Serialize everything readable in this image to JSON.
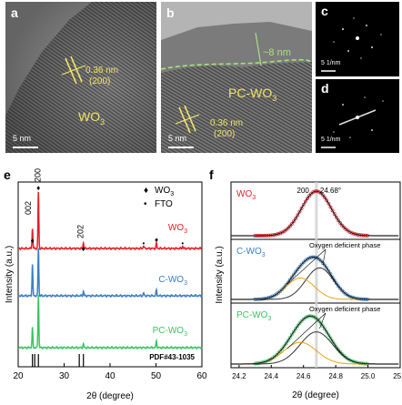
{
  "panel_a": {
    "label": "a",
    "spacing": "0.36 nm",
    "plane": "(200)",
    "material": "WO",
    "material_sub": "3",
    "scale": "5 nm"
  },
  "panel_b": {
    "label": "b",
    "layer_thickness": "~8 nm",
    "material": "PC-WO",
    "material_sub": "3",
    "spacing": "0.36 nm",
    "plane": "(200)",
    "scale": "5 nm"
  },
  "panel_c": {
    "label": "c",
    "scale": "5 1/nm"
  },
  "panel_d": {
    "label": "d",
    "scale": "5 1/nm"
  },
  "panel_e": {
    "label": "e",
    "legend": [
      {
        "symbol": "♦",
        "text": "WO",
        "sub": "3"
      },
      {
        "symbol": "•",
        "text": "FTO"
      }
    ],
    "peak_labels": [
      "002",
      "200",
      "202"
    ],
    "series_labels": [
      {
        "text": "WO",
        "sub": "3",
        "color": "#e3202a"
      },
      {
        "text": "C-WO",
        "sub": "3",
        "color": "#3b7fc4"
      },
      {
        "text": "PC-WO",
        "sub": "3",
        "color": "#3cc364"
      }
    ],
    "reference": "PDF#43-1035",
    "ylabel": "Intensity (a.u.)",
    "xlabel": "2θ (degree)",
    "xticks": [
      "20",
      "30",
      "40",
      "50",
      "60"
    ]
  },
  "panel_f": {
    "label": "f",
    "peak_label": "200",
    "peak_position": "24.68°",
    "annotation": "Oxygen deficient phase",
    "series_labels": [
      {
        "text": "WO",
        "sub": "3",
        "color": "#e3202a"
      },
      {
        "text": "C-WO",
        "sub": "3",
        "color": "#3b7fc4"
      },
      {
        "text": "PC-WO",
        "sub": "3",
        "color": "#3cc364"
      }
    ],
    "ylabel": "Intensity (a.u.)",
    "xlabel": "2θ (degree)",
    "xticks": [
      "24.2",
      "24.4",
      "24.6",
      "24.8",
      "25.0",
      "25.2"
    ]
  },
  "watermark": "",
  "colors": {
    "wo3": "#e3202a",
    "cwo3": "#3b7fc4",
    "pcwo3": "#3cc364",
    "fringe": "#f1e36b",
    "layer": "#a8e27a",
    "fit_main": "#333333",
    "fit_defect": "#e8a317"
  },
  "chart_data": [
    {
      "type": "line",
      "title": "",
      "xlabel": "2θ (degree)",
      "ylabel": "Intensity (a.u.)",
      "xlim": [
        20,
        60
      ],
      "series": [
        {
          "name": "WO3",
          "peaks": [
            [
              23.1,
              0.35
            ],
            [
              24.4,
              1.0
            ],
            [
              34.2,
              0.1
            ],
            [
              47.3,
              0.05
            ],
            [
              50.1,
              0.09
            ],
            [
              55.8,
              0.04
            ]
          ]
        },
        {
          "name": "C-WO3",
          "peaks": [
            [
              23.1,
              0.55
            ],
            [
              24.4,
              0.85
            ],
            [
              34.2,
              0.08
            ],
            [
              47.3,
              0.05
            ],
            [
              50.1,
              0.1
            ]
          ]
        },
        {
          "name": "PC-WO3",
          "peaks": [
            [
              23.1,
              0.35
            ],
            [
              24.4,
              0.95
            ],
            [
              34.2,
              0.06
            ],
            [
              50.1,
              0.12
            ]
          ]
        }
      ],
      "reference_PDF_43_1035": [
        23.1,
        23.6,
        24.4,
        33.3,
        34.2
      ]
    },
    {
      "type": "line",
      "title": "",
      "xlabel": "2θ (degree)",
      "ylabel": "Intensity (a.u.)",
      "xlim": [
        24.15,
        25.2
      ],
      "peak_reference": 24.68,
      "series": [
        {
          "name": "WO3",
          "center": 24.68,
          "fwhm": 0.22,
          "defect_center": null
        },
        {
          "name": "C-WO3",
          "center": 24.66,
          "fwhm": 0.24,
          "defect_center": 24.58
        },
        {
          "name": "PC-WO3",
          "center": 24.64,
          "fwhm": 0.28,
          "defect_center": 24.58
        }
      ]
    }
  ]
}
